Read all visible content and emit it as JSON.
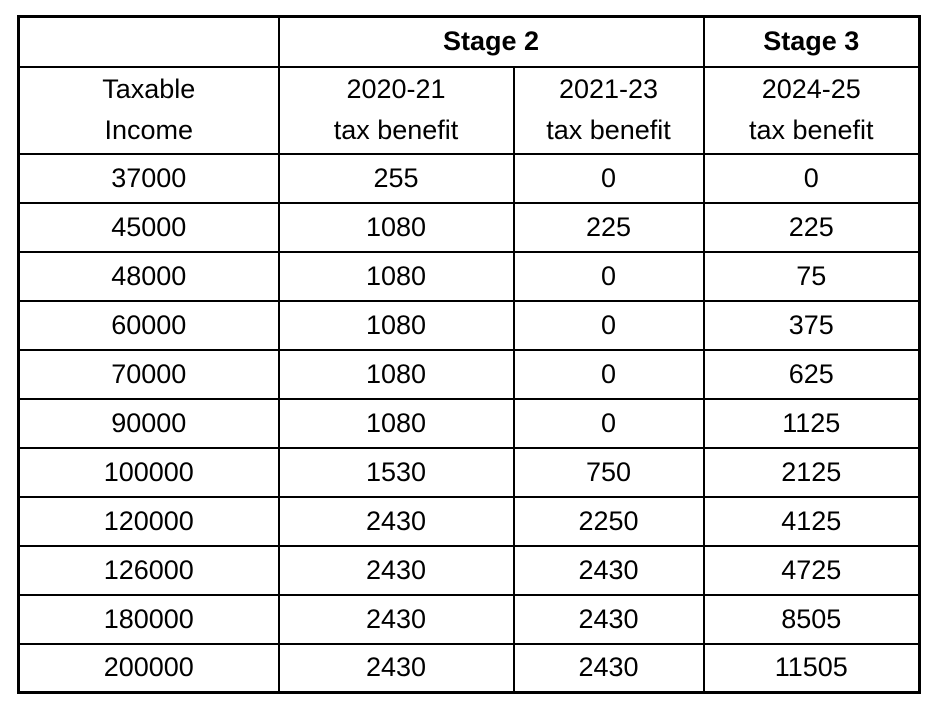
{
  "table": {
    "stage_row": {
      "blank": "",
      "stage2": "Stage 2",
      "stage3": "Stage 3"
    },
    "column_headers": [
      {
        "line1": "Taxable",
        "line2": "Income"
      },
      {
        "line1": "2020-21",
        "line2": "tax benefit"
      },
      {
        "line1": "2021-23",
        "line2": "tax benefit"
      },
      {
        "line1": "2024-25",
        "line2": "tax benefit"
      }
    ],
    "rows": [
      [
        "37000",
        "255",
        "0",
        "0"
      ],
      [
        "45000",
        "1080",
        "225",
        "225"
      ],
      [
        "48000",
        "1080",
        "0",
        "75"
      ],
      [
        "60000",
        "1080",
        "0",
        "375"
      ],
      [
        "70000",
        "1080",
        "0",
        "625"
      ],
      [
        "90000",
        "1080",
        "0",
        "1125"
      ],
      [
        "100000",
        "1530",
        "750",
        "2125"
      ],
      [
        "120000",
        "2430",
        "2250",
        "4125"
      ],
      [
        "126000",
        "2430",
        "2430",
        "4725"
      ],
      [
        "180000",
        "2430",
        "2430",
        "8505"
      ],
      [
        "200000",
        "2430",
        "2430",
        "11505"
      ]
    ],
    "colors": {
      "border": "#000000",
      "text": "#000000",
      "background": "#ffffff"
    }
  },
  "chart_data": {
    "type": "table",
    "title": "",
    "column_groups": [
      {
        "label": "",
        "span": 1
      },
      {
        "label": "Stage 2",
        "span": 2
      },
      {
        "label": "Stage 3",
        "span": 1
      }
    ],
    "columns": [
      "Taxable Income",
      "2020-21 tax benefit",
      "2021-23 tax benefit",
      "2024-25 tax benefit"
    ],
    "rows": [
      [
        37000,
        255,
        0,
        0
      ],
      [
        45000,
        1080,
        225,
        225
      ],
      [
        48000,
        1080,
        0,
        75
      ],
      [
        60000,
        1080,
        0,
        375
      ],
      [
        70000,
        1080,
        0,
        625
      ],
      [
        90000,
        1080,
        0,
        1125
      ],
      [
        100000,
        1530,
        750,
        2125
      ],
      [
        120000,
        2430,
        2250,
        4125
      ],
      [
        126000,
        2430,
        2430,
        4725
      ],
      [
        180000,
        2430,
        2430,
        8505
      ],
      [
        200000,
        2430,
        2430,
        11505
      ]
    ],
    "layout": {
      "grid": true,
      "header_bold_rows": [
        "stage_row"
      ],
      "alignment": "center"
    }
  }
}
